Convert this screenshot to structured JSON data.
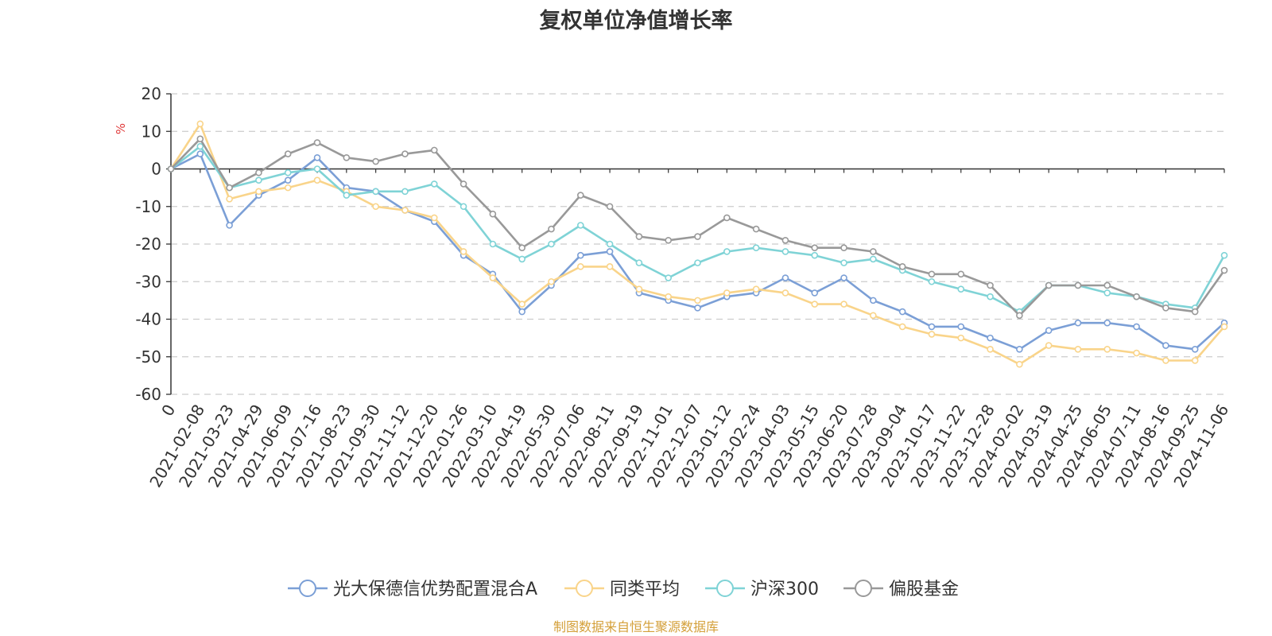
{
  "chart_data": {
    "type": "line",
    "title": "复权单位净值增长率",
    "ylabel": "%",
    "ylim": [
      -60,
      20
    ],
    "y_ticks": [
      20,
      10,
      0,
      -10,
      -20,
      -30,
      -40,
      -50,
      -60
    ],
    "x_tick_labels": [
      "0",
      "2021-02-08",
      "2021-03-23",
      "2021-04-29",
      "2021-06-09",
      "2021-07-16",
      "2021-08-23",
      "2021-09-30",
      "2021-11-12",
      "2021-12-20",
      "2022-01-26",
      "2022-03-10",
      "2022-04-19",
      "2022-05-30",
      "2022-07-06",
      "2022-08-11",
      "2022-09-19",
      "2022-11-01",
      "2022-12-07",
      "2023-01-12",
      "2023-02-24",
      "2023-04-03",
      "2023-05-15",
      "2023-06-20",
      "2023-07-28",
      "2023-09-04",
      "2023-10-17",
      "2023-11-22",
      "2023-12-28",
      "2024-02-02",
      "2024-03-19",
      "2024-04-25",
      "2024-06-05",
      "2024-07-11",
      "2024-08-16",
      "2024-09-25",
      "2024-11-06"
    ],
    "x": [
      "0",
      "2021-02-08",
      "2021-03-23",
      "2021-04-29",
      "2021-06-09",
      "2021-07-16",
      "2021-08-23",
      "2021-09-30",
      "2021-11-12",
      "2021-12-20",
      "2022-01-26",
      "2022-03-10",
      "2022-04-19",
      "2022-05-30",
      "2022-07-06",
      "2022-08-11",
      "2022-09-19",
      "2022-11-01",
      "2022-12-07",
      "2023-01-12",
      "2023-02-24",
      "2023-04-03",
      "2023-05-15",
      "2023-06-20",
      "2023-07-28",
      "2023-09-04",
      "2023-10-17",
      "2023-11-22",
      "2023-12-28",
      "2024-02-02",
      "2024-03-19",
      "2024-04-25",
      "2024-06-05",
      "2024-07-11",
      "2024-08-16",
      "2024-09-25",
      "2024-11-06"
    ],
    "series": [
      {
        "name": "光大保德信优势配置混合A",
        "color": "#7b9fd6",
        "values": [
          0,
          4,
          -15,
          -7,
          -3,
          3,
          -5,
          -6,
          -11,
          -14,
          -23,
          -28,
          -38,
          -31,
          -23,
          -22,
          -33,
          -35,
          -37,
          -34,
          -33,
          -29,
          -33,
          -29,
          -35,
          -38,
          -42,
          -42,
          -45,
          -48,
          -43,
          -41,
          -41,
          -42,
          -47,
          -48,
          -41
        ]
      },
      {
        "name": "同类平均",
        "color": "#f9d48a",
        "values": [
          0,
          12,
          -8,
          -6,
          -5,
          -3,
          -6,
          -10,
          -11,
          -13,
          -22,
          -29,
          -36,
          -30,
          -26,
          -26,
          -32,
          -34,
          -35,
          -33,
          -32,
          -33,
          -36,
          -36,
          -39,
          -42,
          -44,
          -45,
          -48,
          -52,
          -47,
          -48,
          -48,
          -49,
          -51,
          -51,
          -42
        ]
      },
      {
        "name": "沪深300",
        "color": "#7fd3d6",
        "values": [
          0,
          6,
          -5,
          -3,
          -1,
          0,
          -7,
          -6,
          -6,
          -4,
          -10,
          -20,
          -24,
          -20,
          -15,
          -20,
          -25,
          -29,
          -25,
          -22,
          -21,
          -22,
          -23,
          -25,
          -24,
          -27,
          -30,
          -32,
          -34,
          -38,
          -31,
          -31,
          -33,
          -34,
          -36,
          -37,
          -23
        ]
      },
      {
        "name": "偏股基金",
        "color": "#999999",
        "values": [
          0,
          8,
          -5,
          -1,
          4,
          7,
          3,
          2,
          4,
          5,
          -4,
          -12,
          -21,
          -16,
          -7,
          -10,
          -18,
          -19,
          -18,
          -13,
          -16,
          -19,
          -21,
          -21,
          -22,
          -26,
          -28,
          -28,
          -31,
          -39,
          -31,
          -31,
          -31,
          -34,
          -37,
          -38,
          -27
        ]
      }
    ]
  },
  "footer": {
    "source": "制图数据来自恒生聚源数据库"
  }
}
